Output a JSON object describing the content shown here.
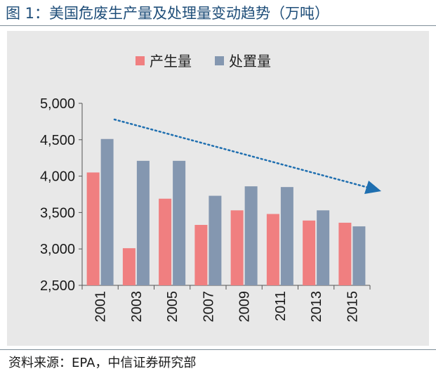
{
  "figure": {
    "title": "图 1：美国危废生产量及处理量变动趋势（万吨）",
    "source": "资料来源：EPA，中信证券研究部"
  },
  "chart_data": {
    "type": "bar",
    "categories": [
      "2001",
      "2003",
      "2005",
      "2007",
      "2009",
      "2011",
      "2013",
      "2015"
    ],
    "series": [
      {
        "name": "产生量",
        "color": "#f07f80",
        "values": [
          4050,
          3010,
          3690,
          3330,
          3530,
          3480,
          3390,
          3360
        ]
      },
      {
        "name": "处置量",
        "color": "#8497b0",
        "values": [
          4510,
          4210,
          4210,
          3730,
          3860,
          3850,
          3530,
          3310
        ]
      }
    ],
    "ylim": [
      2500,
      5000
    ],
    "yticks": [
      2500,
      3000,
      3500,
      4000,
      4500,
      5000
    ],
    "ytick_labels": [
      "2,500",
      "3,000",
      "3,500",
      "4,000",
      "4,500",
      "5,000"
    ],
    "legend_position": "top",
    "grid": false,
    "trend_arrow_color": "#1f6fb0",
    "background_color": "#e8e8e8"
  }
}
